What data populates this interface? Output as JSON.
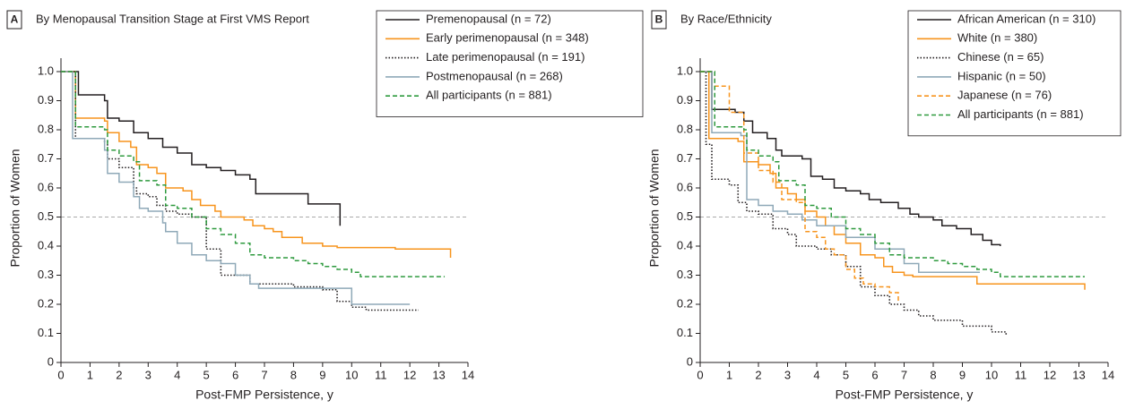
{
  "chart_data": [
    {
      "type": "line",
      "step": "post",
      "panel_label": "A",
      "title": "By Menopausal Transition Stage at First VMS Report",
      "x_label": "Post-FMP Persistence, y",
      "y_label": "Proportion of Women",
      "xlim": [
        0,
        14
      ],
      "xticks": [
        0,
        1,
        2,
        3,
        4,
        5,
        6,
        7,
        8,
        9,
        10,
        11,
        12,
        13,
        14
      ],
      "ylim": [
        0,
        1
      ],
      "yticks": [
        0,
        0.1,
        0.2,
        0.3,
        0.4,
        0.5,
        0.6,
        0.7,
        0.8,
        0.9,
        {
          "value": 1,
          "label": "1.0"
        }
      ],
      "reference_line": 0.5,
      "legend": "upper right",
      "series": [
        {
          "name": "Premenopausal (n = 72)",
          "color": "#231f20",
          "dash": "solid",
          "x": [
            0,
            0.6,
            1.5,
            1.6,
            2,
            2.5,
            3,
            3.5,
            4,
            4.5,
            5,
            5.5,
            6,
            6.5,
            6.7,
            8,
            8.5,
            9.5,
            9.6
          ],
          "values": [
            1,
            0.92,
            0.9,
            0.84,
            0.83,
            0.79,
            0.77,
            0.74,
            0.72,
            0.68,
            0.67,
            0.66,
            0.645,
            0.63,
            0.58,
            0.58,
            0.545,
            0.545,
            0.47
          ]
        },
        {
          "name": "Early perimenopausal (n = 348)",
          "color": "#f7941d",
          "dash": "solid",
          "x": [
            0,
            0.5,
            1.5,
            1.6,
            2,
            2.4,
            2.6,
            3,
            3.3,
            3.6,
            4.2,
            4.5,
            4.8,
            5.3,
            5.5,
            6.3,
            6.6,
            7,
            7.3,
            7.6,
            8.3,
            9,
            9.5,
            11.5,
            13.4
          ],
          "values": [
            1,
            0.84,
            0.83,
            0.79,
            0.76,
            0.74,
            0.68,
            0.67,
            0.65,
            0.6,
            0.59,
            0.56,
            0.54,
            0.52,
            0.5,
            0.49,
            0.47,
            0.46,
            0.45,
            0.43,
            0.41,
            0.4,
            0.395,
            0.39,
            0.36
          ]
        },
        {
          "name": "Late perimenopausal (n = 191)",
          "color": "#231f20",
          "dash": "dotted",
          "x": [
            0,
            0.5,
            1.5,
            1.6,
            2,
            2.5,
            2.6,
            3,
            3.3,
            3.6,
            4,
            4.5,
            5,
            5.5,
            6,
            6.5,
            7,
            8,
            9,
            9.5,
            10,
            10.5,
            12.3
          ],
          "values": [
            1,
            0.77,
            0.76,
            0.7,
            0.67,
            0.6,
            0.58,
            0.57,
            0.54,
            0.52,
            0.51,
            0.5,
            0.39,
            0.3,
            0.3,
            0.27,
            0.27,
            0.26,
            0.25,
            0.21,
            0.19,
            0.18,
            0.18
          ]
        },
        {
          "name": "Postmenopausal (n = 268)",
          "color": "#8fa9b8",
          "dash": "solid",
          "x": [
            0,
            0.4,
            1.5,
            1.6,
            2,
            2.5,
            2.7,
            3,
            3.5,
            3.6,
            4,
            4.5,
            5,
            5.5,
            6,
            6.5,
            6.8,
            9.9,
            10,
            12
          ],
          "values": [
            1,
            0.77,
            0.73,
            0.65,
            0.62,
            0.57,
            0.53,
            0.52,
            0.48,
            0.45,
            0.41,
            0.37,
            0.35,
            0.34,
            0.3,
            0.27,
            0.255,
            0.255,
            0.2,
            0.2
          ]
        },
        {
          "name": "All participants (n = 881)",
          "color": "#2e9a3e",
          "dash": "dashed",
          "x": [
            0,
            0.5,
            1.5,
            1.6,
            2,
            2.5,
            2.7,
            3.3,
            3.6,
            4,
            4.5,
            5,
            5.5,
            6,
            6.5,
            7,
            8,
            8.5,
            9,
            9.5,
            10,
            10.3,
            13.2
          ],
          "values": [
            1,
            0.81,
            0.8,
            0.73,
            0.71,
            0.69,
            0.625,
            0.61,
            0.54,
            0.53,
            0.5,
            0.46,
            0.44,
            0.41,
            0.37,
            0.36,
            0.35,
            0.34,
            0.33,
            0.32,
            0.31,
            0.295,
            0.295
          ]
        }
      ]
    },
    {
      "type": "line",
      "step": "post",
      "panel_label": "B",
      "title": "By Race/Ethnicity",
      "x_label": "Post-FMP Persistence, y",
      "y_label": "Proportion of Women",
      "xlim": [
        0,
        14
      ],
      "xticks": [
        0,
        1,
        2,
        3,
        4,
        5,
        6,
        7,
        8,
        9,
        10,
        11,
        12,
        13,
        14
      ],
      "ylim": [
        0,
        1
      ],
      "yticks": [
        0,
        0.1,
        0.2,
        0.3,
        0.4,
        0.5,
        0.6,
        0.7,
        0.8,
        0.9,
        {
          "value": 1,
          "label": "1.0"
        }
      ],
      "reference_line": 0.5,
      "legend": "upper right",
      "series": [
        {
          "name": "African American (n = 310)",
          "color": "#231f20",
          "dash": "solid",
          "x": [
            0,
            0.4,
            1.2,
            1.5,
            1.8,
            2.3,
            2.6,
            2.8,
            3.5,
            3.8,
            4.2,
            4.6,
            5,
            5.5,
            5.8,
            6.2,
            6.8,
            7.2,
            7.5,
            8,
            8.3,
            8.8,
            9.3,
            9.7,
            10,
            10.3
          ],
          "values": [
            1,
            0.87,
            0.86,
            0.83,
            0.79,
            0.77,
            0.73,
            0.71,
            0.7,
            0.64,
            0.63,
            0.6,
            0.59,
            0.58,
            0.56,
            0.55,
            0.53,
            0.51,
            0.5,
            0.49,
            0.47,
            0.46,
            0.44,
            0.42,
            0.405,
            0.4
          ]
        },
        {
          "name": "White (n = 380)",
          "color": "#f7941d",
          "dash": "solid",
          "x": [
            0,
            0.3,
            1.3,
            1.5,
            2,
            2.4,
            2.6,
            3,
            3.3,
            3.6,
            4,
            4.3,
            4.6,
            5,
            5.5,
            6,
            6.3,
            6.6,
            7,
            7.3,
            9.5,
            12.5,
            13.2
          ],
          "values": [
            1,
            0.77,
            0.76,
            0.69,
            0.68,
            0.65,
            0.6,
            0.58,
            0.56,
            0.52,
            0.5,
            0.47,
            0.44,
            0.41,
            0.37,
            0.36,
            0.33,
            0.31,
            0.3,
            0.295,
            0.27,
            0.27,
            0.25
          ]
        },
        {
          "name": "Chinese (n = 65)",
          "color": "#231f20",
          "dash": "dotted",
          "x": [
            0,
            0.2,
            0.4,
            1,
            1.3,
            1.6,
            2,
            2.5,
            3,
            3.3,
            4,
            4.5,
            5,
            5.5,
            6,
            6.5,
            7,
            7.5,
            8,
            9,
            10,
            10.5
          ],
          "values": [
            1,
            0.75,
            0.63,
            0.61,
            0.55,
            0.52,
            0.51,
            0.46,
            0.44,
            0.4,
            0.39,
            0.37,
            0.33,
            0.26,
            0.23,
            0.2,
            0.18,
            0.16,
            0.145,
            0.125,
            0.105,
            0.095
          ]
        },
        {
          "name": "Hispanic (n = 50)",
          "color": "#8fa9b8",
          "dash": "solid",
          "x": [
            0,
            0.4,
            1.4,
            1.6,
            2,
            2.5,
            3,
            3.5,
            4,
            5,
            6,
            7,
            7.5,
            9.6
          ],
          "values": [
            1,
            0.79,
            0.78,
            0.56,
            0.54,
            0.52,
            0.51,
            0.49,
            0.47,
            0.43,
            0.39,
            0.34,
            0.31,
            0.31
          ]
        },
        {
          "name": "Japanese (n = 76)",
          "color": "#f7941d",
          "dash": "dashed",
          "x": [
            0,
            0.5,
            1,
            1.5,
            2,
            2.5,
            2.8,
            3.3,
            3.6,
            4,
            4.3,
            4.6,
            5,
            5.3,
            5.6,
            6,
            6.5,
            6.8
          ],
          "values": [
            1,
            0.95,
            0.86,
            0.72,
            0.66,
            0.62,
            0.56,
            0.55,
            0.45,
            0.43,
            0.39,
            0.37,
            0.32,
            0.29,
            0.27,
            0.26,
            0.24,
            0.21
          ]
        },
        {
          "name": "All participants (n = 881)",
          "color": "#2e9a3e",
          "dash": "dashed",
          "x": [
            0,
            0.5,
            1.5,
            1.6,
            2,
            2.5,
            2.7,
            3.3,
            3.6,
            4,
            4.5,
            5,
            5.5,
            6,
            6.5,
            7,
            8,
            8.5,
            9,
            9.5,
            10,
            10.3,
            13.2
          ],
          "values": [
            1,
            0.81,
            0.8,
            0.73,
            0.71,
            0.69,
            0.625,
            0.61,
            0.54,
            0.53,
            0.5,
            0.46,
            0.44,
            0.41,
            0.37,
            0.36,
            0.35,
            0.34,
            0.33,
            0.32,
            0.31,
            0.295,
            0.295
          ]
        }
      ]
    }
  ]
}
